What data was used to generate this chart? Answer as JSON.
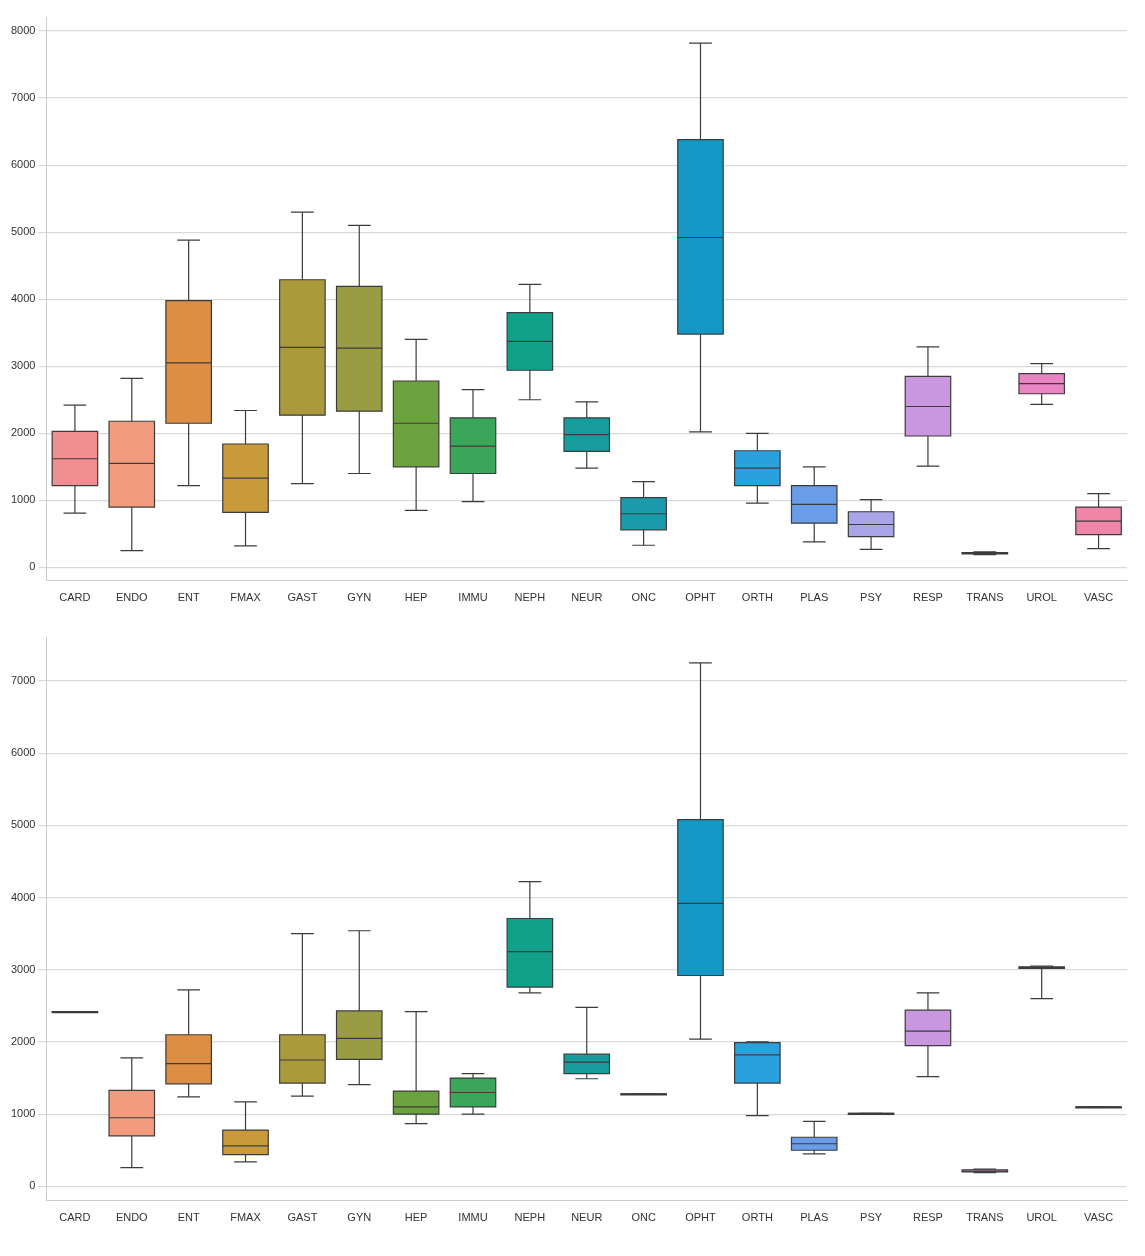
{
  "chart_data": [
    {
      "type": "box",
      "categories": [
        "CARD",
        "ENDO",
        "ENT",
        "FMAX",
        "GAST",
        "GYN",
        "HEP",
        "IMMU",
        "NEPH",
        "NEUR",
        "ONC",
        "OPHT",
        "ORTH",
        "PLAS",
        "PSY",
        "RESP",
        "TRANS",
        "UROL",
        "VASC"
      ],
      "colors": [
        "#f08e92",
        "#f39b7f",
        "#dc8e45",
        "#c99a3a",
        "#ab9a3c",
        "#9a9c45",
        "#6ca23e",
        "#3aa65a",
        "#11a08a",
        "#179c9c",
        "#1b9aab",
        "#1499c6",
        "#2aa0dc",
        "#6a9de8",
        "#a9a5e9",
        "#c996e0",
        "#dc8edc",
        "#ea85c4",
        "#ef86a8"
      ],
      "boxes": [
        {
          "low": 810,
          "q1": 1220,
          "median": 1620,
          "q3": 2030,
          "high": 2420
        },
        {
          "low": 250,
          "q1": 900,
          "median": 1550,
          "q3": 2180,
          "high": 2820
        },
        {
          "low": 1220,
          "q1": 2150,
          "median": 3050,
          "q3": 3980,
          "high": 4880
        },
        {
          "low": 320,
          "q1": 820,
          "median": 1330,
          "q3": 1840,
          "high": 2340
        },
        {
          "low": 1250,
          "q1": 2270,
          "median": 3280,
          "q3": 4290,
          "high": 5300
        },
        {
          "low": 1400,
          "q1": 2330,
          "median": 3270,
          "q3": 4190,
          "high": 5100
        },
        {
          "low": 850,
          "q1": 1500,
          "median": 2150,
          "q3": 2780,
          "high": 3400
        },
        {
          "low": 980,
          "q1": 1400,
          "median": 1810,
          "q3": 2230,
          "high": 2650
        },
        {
          "low": 2500,
          "q1": 2940,
          "median": 3370,
          "q3": 3800,
          "high": 4220
        },
        {
          "low": 1480,
          "q1": 1730,
          "median": 1980,
          "q3": 2230,
          "high": 2470
        },
        {
          "low": 330,
          "q1": 560,
          "median": 800,
          "q3": 1040,
          "high": 1280
        },
        {
          "low": 2020,
          "q1": 3480,
          "median": 4920,
          "q3": 6380,
          "high": 7820
        },
        {
          "low": 960,
          "q1": 1220,
          "median": 1480,
          "q3": 1740,
          "high": 2000
        },
        {
          "low": 380,
          "q1": 660,
          "median": 940,
          "q3": 1220,
          "high": 1500
        },
        {
          "low": 270,
          "q1": 460,
          "median": 640,
          "q3": 830,
          "high": 1010
        },
        {
          "low": 1510,
          "q1": 1960,
          "median": 2400,
          "q3": 2850,
          "high": 3290
        },
        {
          "low": 190,
          "q1": 200,
          "median": 210,
          "q3": 220,
          "high": 230
        },
        {
          "low": 2430,
          "q1": 2590,
          "median": 2740,
          "q3": 2890,
          "high": 3040
        },
        {
          "low": 280,
          "q1": 490,
          "median": 690,
          "q3": 900,
          "high": 1100
        }
      ],
      "ylim": [
        -200,
        8200
      ],
      "yticks": [
        0,
        1000,
        2000,
        3000,
        4000,
        5000,
        6000,
        7000,
        8000
      ],
      "grid": "y"
    },
    {
      "type": "box",
      "categories": [
        "CARD",
        "ENDO",
        "ENT",
        "FMAX",
        "GAST",
        "GYN",
        "HEP",
        "IMMU",
        "NEPH",
        "NEUR",
        "ONC",
        "OPHT",
        "ORTH",
        "PLAS",
        "PSY",
        "RESP",
        "TRANS",
        "UROL",
        "VASC"
      ],
      "colors": [
        "#f08e92",
        "#f39b7f",
        "#dc8e45",
        "#c99a3a",
        "#ab9a3c",
        "#9a9c45",
        "#6ca23e",
        "#3aa65a",
        "#11a08a",
        "#179c9c",
        "#1b9aab",
        "#1499c6",
        "#2aa0dc",
        "#6a9de8",
        "#a9a5e9",
        "#c996e0",
        "#dc8edc",
        "#ea85c4",
        "#ef86a8"
      ],
      "boxes": [
        {
          "low": 2420,
          "q1": 2420,
          "median": 2420,
          "q3": 2420,
          "high": 2420
        },
        {
          "low": 260,
          "q1": 700,
          "median": 950,
          "q3": 1330,
          "high": 1780
        },
        {
          "low": 1240,
          "q1": 1420,
          "median": 1700,
          "q3": 2100,
          "high": 2720
        },
        {
          "low": 340,
          "q1": 440,
          "median": 560,
          "q3": 780,
          "high": 1170
        },
        {
          "low": 1250,
          "q1": 1430,
          "median": 1750,
          "q3": 2100,
          "high": 3500
        },
        {
          "low": 1410,
          "q1": 1760,
          "median": 2050,
          "q3": 2430,
          "high": 3540
        },
        {
          "low": 870,
          "q1": 1000,
          "median": 1100,
          "q3": 1320,
          "high": 2420
        },
        {
          "low": 1000,
          "q1": 1100,
          "median": 1300,
          "q3": 1500,
          "high": 1560
        },
        {
          "low": 2680,
          "q1": 2760,
          "median": 3250,
          "q3": 3710,
          "high": 4220
        },
        {
          "low": 1490,
          "q1": 1560,
          "median": 1720,
          "q3": 1830,
          "high": 2480
        },
        {
          "low": 1280,
          "q1": 1280,
          "median": 1280,
          "q3": 1280,
          "high": 1280
        },
        {
          "low": 2040,
          "q1": 2920,
          "median": 3920,
          "q3": 5080,
          "high": 7250
        },
        {
          "low": 980,
          "q1": 1430,
          "median": 1820,
          "q3": 1990,
          "high": 2000
        },
        {
          "low": 450,
          "q1": 500,
          "median": 590,
          "q3": 680,
          "high": 900
        },
        {
          "low": 1010,
          "q1": 1010,
          "median": 1010,
          "q3": 1010,
          "high": 1010
        },
        {
          "low": 1520,
          "q1": 1950,
          "median": 2150,
          "q3": 2440,
          "high": 2680
        },
        {
          "low": 190,
          "q1": 200,
          "median": 210,
          "q3": 230,
          "high": 240
        },
        {
          "low": 2600,
          "q1": 3020,
          "median": 3030,
          "q3": 3040,
          "high": 3050
        },
        {
          "low": 1100,
          "q1": 1100,
          "median": 1100,
          "q3": 1100,
          "high": 1100
        }
      ],
      "ylim": [
        -200,
        7600
      ],
      "yticks": [
        0,
        1000,
        2000,
        3000,
        4000,
        5000,
        6000,
        7000
      ],
      "grid": "y"
    }
  ]
}
